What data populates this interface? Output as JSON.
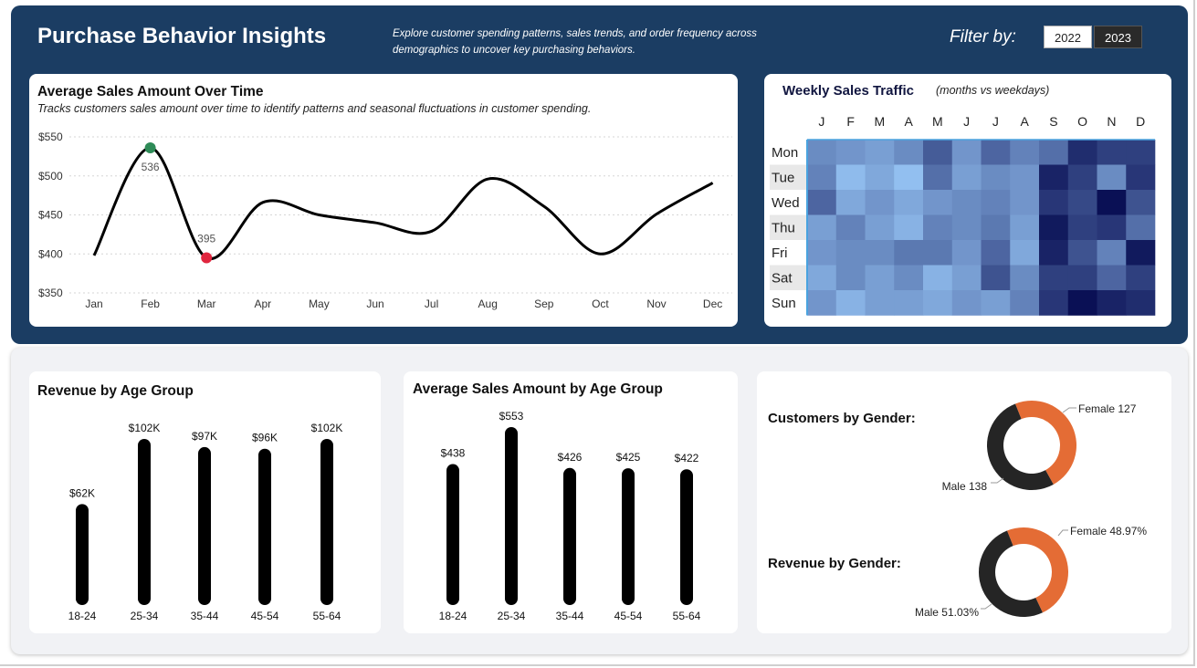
{
  "header": {
    "title": "Purchase Behavior Insights",
    "subtitle": "Explore customer spending patterns, sales trends, and order frequency across demographics to uncover key purchasing behaviors.",
    "filter_label": "Filter by:",
    "years": [
      "2022",
      "2023"
    ],
    "selected_year": "2023"
  },
  "colors": {
    "header_bg": "#1b3d63",
    "line": "#000000",
    "peak_marker": "#2e8b57",
    "low_marker": "#e0263f",
    "bar": "#000000",
    "female": "#e46c35",
    "male": "#252525"
  },
  "line_chart": {
    "title": "Average Sales Amount Over Time",
    "subtitle": "Tracks customers sales amount over time to identify patterns and seasonal fluctuations in customer spending.",
    "peak_label": "536",
    "low_label": "395"
  },
  "heatmap": {
    "title": "Weekly Sales Traffic",
    "note": "(months vs weekdays)",
    "months": [
      "J",
      "F",
      "M",
      "A",
      "M",
      "J",
      "J",
      "A",
      "S",
      "O",
      "N",
      "D"
    ],
    "days": [
      "Mon",
      "Tue",
      "Wed",
      "Thu",
      "Fri",
      "Sat",
      "Sun"
    ]
  },
  "revenue_chart": {
    "title": "Revenue by Age Group"
  },
  "avg_chart": {
    "title": "Average Sales Amount by Age Group"
  },
  "gender": {
    "customers_label": "Customers by Gender:",
    "revenue_label": "Revenue by Gender:",
    "customers_female_label": "Female 127",
    "customers_male_label": "Male 138",
    "revenue_female_label": "Female 48.97%",
    "revenue_male_label": "Male 51.03%"
  },
  "chart_data": [
    {
      "type": "line",
      "title": "Average Sales Amount Over Time",
      "categories": [
        "Jan",
        "Feb",
        "Mar",
        "Apr",
        "May",
        "Jun",
        "Jul",
        "Aug",
        "Sep",
        "Oct",
        "Nov",
        "Dec"
      ],
      "values": [
        398,
        536,
        395,
        466,
        450,
        440,
        429,
        496,
        461,
        400,
        451,
        491
      ],
      "yticks": [
        "$550",
        "$500",
        "$450",
        "$400",
        "$350"
      ],
      "ylim": [
        350,
        550
      ],
      "grid": true
    },
    {
      "type": "heatmap",
      "title": "Weekly Sales Traffic",
      "x": [
        "J",
        "F",
        "M",
        "A",
        "M",
        "J",
        "J",
        "A",
        "S",
        "O",
        "N",
        "D"
      ],
      "y": [
        "Mon",
        "Tue",
        "Wed",
        "Thu",
        "Fri",
        "Sat",
        "Sun"
      ],
      "values": [
        [
          0.35,
          0.3,
          0.25,
          0.35,
          0.6,
          0.3,
          0.55,
          0.4,
          0.5,
          0.85,
          0.75,
          0.75
        ],
        [
          0.4,
          0.1,
          0.2,
          0.08,
          0.5,
          0.25,
          0.35,
          0.3,
          0.9,
          0.75,
          0.35,
          0.8
        ],
        [
          0.55,
          0.2,
          0.3,
          0.2,
          0.3,
          0.35,
          0.4,
          0.3,
          0.8,
          0.7,
          1.0,
          0.65
        ],
        [
          0.25,
          0.4,
          0.25,
          0.15,
          0.4,
          0.35,
          0.45,
          0.25,
          0.95,
          0.75,
          0.8,
          0.5
        ],
        [
          0.3,
          0.35,
          0.35,
          0.45,
          0.45,
          0.3,
          0.55,
          0.2,
          0.9,
          0.65,
          0.4,
          0.95
        ],
        [
          0.2,
          0.35,
          0.25,
          0.35,
          0.15,
          0.25,
          0.65,
          0.35,
          0.75,
          0.75,
          0.55,
          0.75
        ],
        [
          0.3,
          0.15,
          0.25,
          0.25,
          0.2,
          0.3,
          0.25,
          0.4,
          0.8,
          1.0,
          0.9,
          0.85
        ]
      ]
    },
    {
      "type": "bar",
      "title": "Revenue by Age Group",
      "categories": [
        "18-24",
        "25-34",
        "35-44",
        "45-54",
        "55-64"
      ],
      "values": [
        62,
        102,
        97,
        96,
        102
      ],
      "labels": [
        "$62K",
        "$102K",
        "$97K",
        "$96K",
        "$102K"
      ],
      "unit": "K"
    },
    {
      "type": "bar",
      "title": "Average Sales Amount by Age Group",
      "categories": [
        "18-24",
        "25-34",
        "35-44",
        "45-54",
        "55-64"
      ],
      "values": [
        438,
        553,
        426,
        425,
        422
      ],
      "labels": [
        "$438",
        "$553",
        "$426",
        "$425",
        "$422"
      ]
    },
    {
      "type": "pie",
      "title": "Customers by Gender:",
      "categories": [
        "Female",
        "Male"
      ],
      "values": [
        127,
        138
      ]
    },
    {
      "type": "pie",
      "title": "Revenue by Gender:",
      "categories": [
        "Female",
        "Male"
      ],
      "values": [
        48.97,
        51.03
      ]
    }
  ]
}
